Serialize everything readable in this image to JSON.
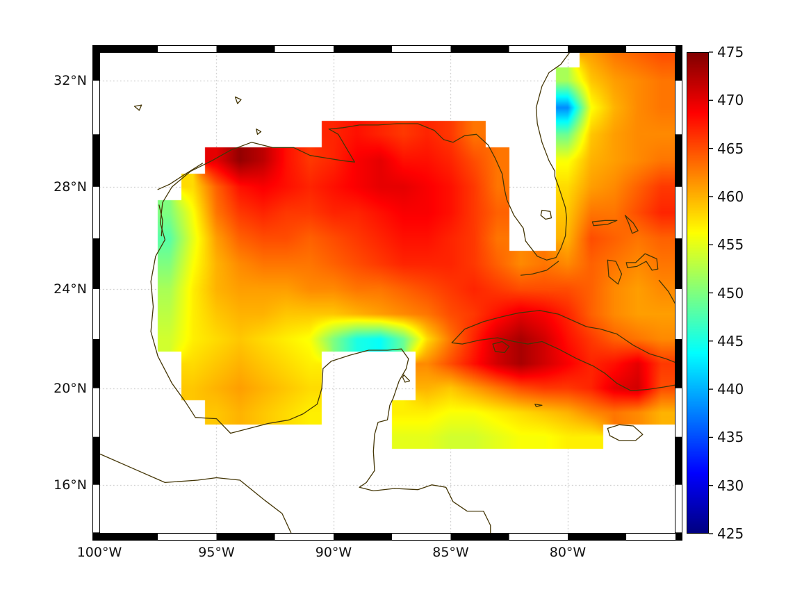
{
  "figure": {
    "background": "#ffffff",
    "coastline_color": "#443606",
    "grid_color": "#b3b3b3",
    "frame_black": "#000000",
    "frame_white": "#ffffff",
    "text_color": "#111111"
  },
  "axes": {
    "projection": "mercator",
    "lon_range": [
      -100,
      -75.4
    ],
    "lat_range": [
      13.95,
      33.05
    ],
    "frame": {
      "lon_step": 2.5,
      "lat_step": 2
    },
    "lon_ticks": [
      {
        "value": -100,
        "label": "100°W"
      },
      {
        "value": -95,
        "label": "95°W"
      },
      {
        "value": -90,
        "label": "90°W"
      },
      {
        "value": -85,
        "label": "85°W"
      },
      {
        "value": -80,
        "label": "80°W"
      }
    ],
    "lat_ticks": [
      {
        "value": 32,
        "label": "32°N"
      },
      {
        "value": 28,
        "label": "28°N"
      },
      {
        "value": 24,
        "label": "24°N"
      },
      {
        "value": 20,
        "label": "20°N"
      },
      {
        "value": 16,
        "label": "16°N"
      }
    ]
  },
  "colorbar": {
    "min": 425,
    "max": 475,
    "colormap": "jet",
    "ticks": [
      {
        "value": 425,
        "label": "425"
      },
      {
        "value": 430,
        "label": "430"
      },
      {
        "value": 435,
        "label": "435"
      },
      {
        "value": 440,
        "label": "440"
      },
      {
        "value": 445,
        "label": "445"
      },
      {
        "value": 450,
        "label": "450"
      },
      {
        "value": 455,
        "label": "455"
      },
      {
        "value": 460,
        "label": "460"
      },
      {
        "value": 465,
        "label": "465"
      },
      {
        "value": 470,
        "label": "470"
      },
      {
        "value": 475,
        "label": "475"
      }
    ]
  },
  "chart_data": {
    "type": "heatmap",
    "x": "longitude_deg",
    "y": "latitude_deg",
    "value_range": [
      425,
      475
    ],
    "lons": [
      -100,
      -99,
      -98,
      -97,
      -96,
      -95,
      -94,
      -93,
      -92,
      -91,
      -90,
      -89,
      -88,
      -87,
      -86,
      -85,
      -84,
      -83,
      -82,
      -81,
      -80,
      -79,
      -78,
      -77,
      -76
    ],
    "lats": [
      33,
      32,
      31,
      30,
      29,
      28,
      27,
      26,
      25,
      24,
      23,
      22,
      21,
      20,
      19,
      18,
      17,
      16,
      15,
      14
    ],
    "values": [
      [
        null,
        null,
        null,
        null,
        null,
        null,
        null,
        null,
        null,
        null,
        null,
        null,
        null,
        null,
        null,
        null,
        null,
        null,
        null,
        null,
        null,
        461,
        463,
        464,
        465
      ],
      [
        null,
        null,
        null,
        null,
        null,
        null,
        null,
        null,
        null,
        null,
        null,
        null,
        null,
        null,
        null,
        null,
        null,
        null,
        null,
        null,
        452,
        459,
        461,
        462,
        463
      ],
      [
        null,
        null,
        null,
        null,
        null,
        null,
        null,
        null,
        null,
        null,
        null,
        null,
        null,
        null,
        null,
        null,
        null,
        null,
        null,
        null,
        438,
        456,
        460,
        462,
        463
      ],
      [
        null,
        null,
        null,
        null,
        null,
        null,
        null,
        null,
        null,
        null,
        467,
        468,
        467,
        466,
        467,
        466,
        463,
        null,
        null,
        null,
        449,
        459,
        461,
        462,
        462
      ],
      [
        null,
        null,
        null,
        null,
        null,
        470,
        474,
        472,
        468,
        466,
        467,
        469,
        470,
        468,
        468,
        467,
        465,
        463,
        null,
        null,
        456,
        460,
        461,
        462,
        463
      ],
      [
        null,
        null,
        null,
        null,
        458,
        464,
        468,
        469,
        468,
        467,
        468,
        469,
        470,
        470,
        469,
        468,
        466,
        463,
        null,
        null,
        458,
        461,
        462,
        464,
        466
      ],
      [
        null,
        null,
        null,
        450,
        456,
        463,
        466,
        467,
        466,
        466,
        467,
        467,
        468,
        469,
        469,
        468,
        466,
        464,
        null,
        null,
        459,
        463,
        463,
        465,
        467
      ],
      [
        null,
        null,
        null,
        448,
        455,
        461,
        464,
        465,
        465,
        464,
        465,
        466,
        467,
        468,
        468,
        467,
        466,
        463,
        null,
        null,
        460,
        465,
        464,
        463,
        464
      ],
      [
        null,
        null,
        null,
        450,
        456,
        460,
        462,
        463,
        463,
        463,
        464,
        465,
        466,
        467,
        467,
        467,
        466,
        464,
        462,
        463,
        462,
        464,
        463,
        462,
        463
      ],
      [
        null,
        null,
        null,
        452,
        457,
        460,
        461,
        461,
        461,
        462,
        462,
        463,
        463,
        464,
        465,
        466,
        467,
        466,
        465,
        465,
        465,
        464,
        462,
        461,
        462
      ],
      [
        null,
        null,
        null,
        453,
        457,
        459,
        460,
        460,
        459,
        459,
        459,
        460,
        461,
        462,
        463,
        465,
        466,
        468,
        470,
        469,
        467,
        464,
        462,
        461,
        461
      ],
      [
        null,
        null,
        null,
        454,
        457,
        458,
        459,
        458,
        457,
        456,
        450,
        445,
        444,
        449,
        458,
        463,
        467,
        471,
        473,
        471,
        468,
        466,
        464,
        463,
        462
      ],
      [
        null,
        null,
        null,
        null,
        458,
        459,
        460,
        459,
        458,
        457,
        null,
        null,
        null,
        null,
        462,
        465,
        468,
        471,
        473,
        471,
        469,
        467,
        468,
        470,
        466
      ],
      [
        null,
        null,
        null,
        null,
        459,
        460,
        461,
        460,
        459,
        458,
        null,
        null,
        null,
        null,
        460,
        459,
        461,
        463,
        465,
        466,
        466,
        467,
        470,
        471,
        465
      ],
      [
        null,
        null,
        null,
        null,
        null,
        459,
        460,
        459,
        458,
        457,
        null,
        null,
        null,
        457,
        457,
        456,
        456,
        457,
        458,
        459,
        460,
        462,
        463,
        462,
        460
      ],
      [
        null,
        null,
        null,
        null,
        null,
        null,
        null,
        null,
        null,
        null,
        null,
        null,
        null,
        455,
        455,
        454,
        454,
        455,
        456,
        456,
        457,
        457,
        null,
        null,
        null
      ],
      [
        null,
        null,
        null,
        null,
        null,
        null,
        null,
        null,
        null,
        null,
        null,
        null,
        null,
        null,
        null,
        null,
        null,
        null,
        null,
        null,
        null,
        null,
        null,
        null,
        null
      ],
      [
        null,
        null,
        null,
        null,
        null,
        null,
        null,
        null,
        null,
        null,
        null,
        null,
        null,
        null,
        null,
        null,
        null,
        null,
        null,
        null,
        null,
        null,
        null,
        null,
        null
      ],
      [
        null,
        null,
        null,
        null,
        null,
        null,
        null,
        null,
        null,
        null,
        null,
        null,
        null,
        null,
        null,
        null,
        null,
        null,
        null,
        null,
        null,
        null,
        null,
        null,
        null
      ],
      [
        null,
        null,
        null,
        null,
        null,
        null,
        null,
        null,
        null,
        null,
        null,
        null,
        null,
        null,
        null,
        null,
        null,
        null,
        null,
        null,
        null,
        null,
        null,
        null,
        null
      ]
    ]
  },
  "coastlines": [
    [
      [
        -100,
        17.3
      ],
      [
        -98.6,
        16.7
      ],
      [
        -97.2,
        16.1
      ],
      [
        -95.8,
        16.2
      ],
      [
        -95.0,
        16.3
      ],
      [
        -94.0,
        16.2
      ],
      [
        -93.0,
        15.4
      ],
      [
        -92.2,
        14.8
      ],
      [
        -91.8,
        13.95
      ]
    ],
    [
      [
        -95.9,
        18.8
      ],
      [
        -96.3,
        19.4
      ],
      [
        -96.9,
        20.2
      ],
      [
        -97.5,
        21.3
      ],
      [
        -97.8,
        22.3
      ],
      [
        -97.7,
        23.3
      ],
      [
        -97.8,
        24.3
      ],
      [
        -97.6,
        25.3
      ],
      [
        -97.2,
        25.95
      ],
      [
        -97.4,
        26.6
      ],
      [
        -97.3,
        27.4
      ],
      [
        -96.9,
        28.0
      ],
      [
        -96.1,
        28.6
      ],
      [
        -95.2,
        29.0
      ],
      [
        -94.4,
        29.4
      ],
      [
        -93.5,
        29.7
      ],
      [
        -92.6,
        29.5
      ],
      [
        -91.7,
        29.5
      ],
      [
        -91.0,
        29.2
      ],
      [
        -90.3,
        29.1
      ],
      [
        -89.6,
        29.0
      ],
      [
        -89.1,
        28.95
      ],
      [
        -89.4,
        29.4
      ],
      [
        -89.8,
        30.0
      ],
      [
        -90.2,
        30.2
      ],
      [
        -89.6,
        30.25
      ],
      [
        -88.9,
        30.35
      ],
      [
        -88.1,
        30.35
      ],
      [
        -87.3,
        30.4
      ],
      [
        -86.4,
        30.4
      ],
      [
        -85.7,
        30.15
      ],
      [
        -85.3,
        29.8
      ],
      [
        -84.9,
        29.7
      ],
      [
        -84.4,
        29.95
      ],
      [
        -83.9,
        30.0
      ],
      [
        -83.4,
        29.6
      ],
      [
        -83.1,
        29.1
      ],
      [
        -82.8,
        28.5
      ],
      [
        -82.7,
        27.9
      ],
      [
        -82.6,
        27.5
      ],
      [
        -82.3,
        26.9
      ],
      [
        -81.9,
        26.4
      ],
      [
        -81.8,
        25.9
      ],
      [
        -81.3,
        25.3
      ],
      [
        -80.9,
        25.15
      ],
      [
        -80.5,
        25.25
      ],
      [
        -80.3,
        25.6
      ],
      [
        -80.1,
        26.1
      ],
      [
        -80.05,
        26.8
      ],
      [
        -80.1,
        27.2
      ],
      [
        -80.35,
        27.9
      ],
      [
        -80.55,
        28.4
      ],
      [
        -80.55,
        28.6
      ],
      [
        -80.8,
        29.0
      ],
      [
        -81.1,
        29.7
      ],
      [
        -81.3,
        30.4
      ],
      [
        -81.35,
        31.0
      ],
      [
        -81.1,
        31.8
      ],
      [
        -80.8,
        32.3
      ],
      [
        -80.3,
        32.6
      ],
      [
        -79.9,
        33.06
      ]
    ],
    [
      [
        -95.9,
        18.8
      ],
      [
        -95.0,
        18.75
      ],
      [
        -94.4,
        18.15
      ],
      [
        -93.6,
        18.35
      ],
      [
        -92.8,
        18.55
      ],
      [
        -91.9,
        18.7
      ],
      [
        -91.3,
        18.95
      ],
      [
        -90.7,
        19.35
      ],
      [
        -90.5,
        20.0
      ],
      [
        -90.45,
        20.8
      ],
      [
        -90.1,
        21.1
      ],
      [
        -89.3,
        21.35
      ],
      [
        -88.5,
        21.55
      ],
      [
        -87.7,
        21.55
      ],
      [
        -87.1,
        21.6
      ],
      [
        -86.8,
        21.2
      ],
      [
        -86.9,
        20.8
      ],
      [
        -87.2,
        20.3
      ],
      [
        -87.45,
        19.6
      ],
      [
        -87.6,
        19.3
      ],
      [
        -87.7,
        18.7
      ],
      [
        -88.1,
        18.6
      ],
      [
        -88.25,
        18.1
      ],
      [
        -88.3,
        17.4
      ],
      [
        -88.25,
        16.6
      ],
      [
        -88.6,
        16.1
      ],
      [
        -88.9,
        15.9
      ],
      [
        -88.3,
        15.75
      ],
      [
        -87.4,
        15.85
      ],
      [
        -86.4,
        15.8
      ],
      [
        -85.8,
        16.0
      ],
      [
        -85.2,
        15.9
      ],
      [
        -84.9,
        15.3
      ],
      [
        -84.3,
        14.9
      ],
      [
        -83.6,
        14.9
      ],
      [
        -83.3,
        14.3
      ],
      [
        -83.3,
        13.95
      ]
    ],
    [
      [
        -84.95,
        21.85
      ],
      [
        -84.4,
        22.4
      ],
      [
        -83.6,
        22.7
      ],
      [
        -82.8,
        22.9
      ],
      [
        -82.1,
        23.05
      ],
      [
        -81.2,
        23.15
      ],
      [
        -80.4,
        23.0
      ],
      [
        -79.8,
        22.75
      ],
      [
        -79.2,
        22.5
      ],
      [
        -78.6,
        22.4
      ],
      [
        -77.9,
        22.2
      ],
      [
        -77.2,
        21.75
      ],
      [
        -76.5,
        21.4
      ],
      [
        -75.8,
        21.2
      ],
      [
        -75.0,
        20.9
      ],
      [
        -75.0,
        20.2
      ],
      [
        -75.9,
        20.05
      ],
      [
        -76.6,
        19.95
      ],
      [
        -77.3,
        19.9
      ],
      [
        -77.9,
        20.2
      ],
      [
        -78.4,
        20.6
      ],
      [
        -78.9,
        20.9
      ],
      [
        -79.6,
        21.2
      ],
      [
        -80.4,
        21.6
      ],
      [
        -81.1,
        21.9
      ],
      [
        -81.7,
        21.8
      ],
      [
        -82.3,
        21.9
      ],
      [
        -83.0,
        22.05
      ],
      [
        -83.8,
        21.95
      ],
      [
        -84.5,
        21.8
      ],
      [
        -84.95,
        21.85
      ]
    ],
    [
      [
        -83.2,
        21.8
      ],
      [
        -82.8,
        21.9
      ],
      [
        -82.5,
        21.7
      ],
      [
        -82.7,
        21.45
      ],
      [
        -83.1,
        21.5
      ],
      [
        -83.2,
        21.8
      ]
    ],
    [
      [
        -78.3,
        18.35
      ],
      [
        -77.8,
        18.5
      ],
      [
        -77.2,
        18.45
      ],
      [
        -76.8,
        18.1
      ],
      [
        -77.1,
        17.85
      ],
      [
        -77.8,
        17.85
      ],
      [
        -78.2,
        18.05
      ],
      [
        -78.3,
        18.35
      ]
    ],
    [
      [
        -78.95,
        26.65
      ],
      [
        -78.4,
        26.7
      ],
      [
        -77.9,
        26.7
      ],
      [
        -78.3,
        26.55
      ],
      [
        -78.9,
        26.5
      ],
      [
        -78.95,
        26.65
      ]
    ],
    [
      [
        -77.55,
        26.9
      ],
      [
        -77.2,
        26.6
      ],
      [
        -77.0,
        26.3
      ],
      [
        -77.25,
        26.2
      ],
      [
        -77.4,
        26.6
      ],
      [
        -77.55,
        26.9
      ]
    ],
    [
      [
        -78.3,
        25.15
      ],
      [
        -77.95,
        25.1
      ],
      [
        -77.7,
        24.6
      ],
      [
        -77.85,
        24.2
      ],
      [
        -78.25,
        24.5
      ],
      [
        -78.3,
        25.15
      ]
    ],
    [
      [
        -77.5,
        25.05
      ],
      [
        -77.1,
        25.05
      ],
      [
        -76.7,
        25.4
      ],
      [
        -76.2,
        25.2
      ],
      [
        -76.15,
        24.8
      ],
      [
        -76.4,
        24.75
      ],
      [
        -76.65,
        25.1
      ],
      [
        -77.05,
        24.9
      ],
      [
        -77.45,
        24.85
      ],
      [
        -77.5,
        25.05
      ]
    ],
    [
      [
        -76.1,
        24.35
      ],
      [
        -75.7,
        23.9
      ],
      [
        -75.4,
        23.4
      ],
      [
        -75.1,
        23.1
      ]
    ],
    [
      [
        -87.0,
        20.55
      ],
      [
        -86.75,
        20.3
      ],
      [
        -86.95,
        20.25
      ],
      [
        -87.05,
        20.45
      ],
      [
        -87.0,
        20.55
      ]
    ],
    [
      [
        -81.1,
        27.1
      ],
      [
        -80.75,
        27.05
      ],
      [
        -80.7,
        26.8
      ],
      [
        -80.95,
        26.75
      ],
      [
        -81.15,
        26.9
      ],
      [
        -81.1,
        27.1
      ]
    ],
    [
      [
        -97.45,
        27.3
      ],
      [
        -97.3,
        26.7
      ],
      [
        -97.35,
        26.1
      ]
    ],
    [
      [
        -97.5,
        27.9
      ],
      [
        -97.0,
        28.1
      ],
      [
        -96.4,
        28.45
      ],
      [
        -95.6,
        28.9
      ]
    ],
    [
      [
        -80.4,
        25.1
      ],
      [
        -80.9,
        24.75
      ],
      [
        -81.5,
        24.6
      ],
      [
        -82.0,
        24.55
      ]
    ],
    [
      [
        -98.5,
        31.05
      ],
      [
        -98.2,
        31.1
      ],
      [
        -98.3,
        30.9
      ],
      [
        -98.5,
        31.05
      ]
    ],
    [
      [
        -94.2,
        31.4
      ],
      [
        -93.95,
        31.3
      ],
      [
        -94.1,
        31.15
      ],
      [
        -94.2,
        31.4
      ]
    ],
    [
      [
        -93.3,
        30.2
      ],
      [
        -93.1,
        30.1
      ],
      [
        -93.25,
        30.0
      ],
      [
        -93.3,
        30.2
      ]
    ],
    [
      [
        -81.4,
        19.35
      ],
      [
        -81.1,
        19.3
      ],
      [
        -81.35,
        19.25
      ],
      [
        -81.4,
        19.35
      ]
    ]
  ]
}
